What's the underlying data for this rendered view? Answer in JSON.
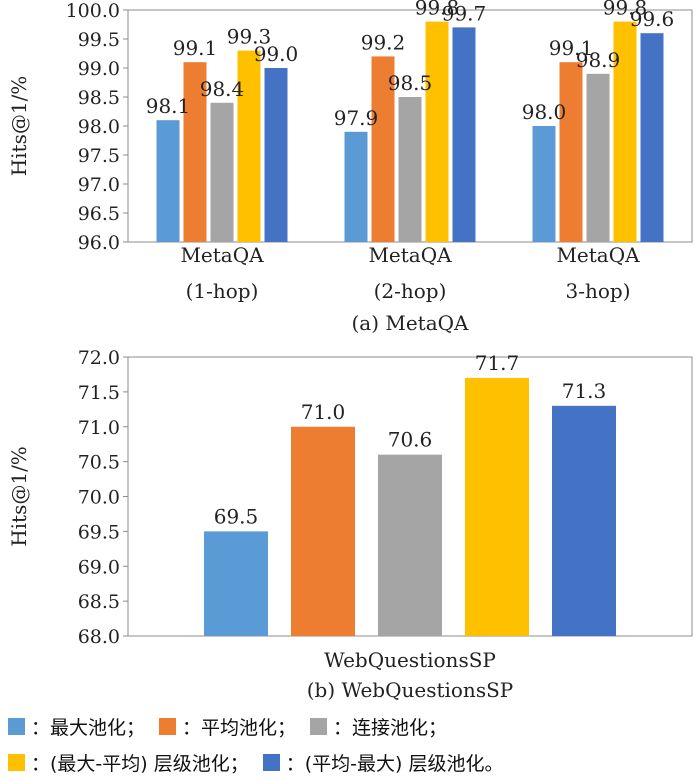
{
  "series_names": [
    "最大池化",
    "平均池化",
    "连接池化",
    "(最大-平均) 层级池化",
    "(平均-最大) 层级池化"
  ],
  "series_colors": [
    "#5b9bd5",
    "#ed7d31",
    "#a5a5a5",
    "#ffc000",
    "#4472c4"
  ],
  "legend": {
    "items": [
      {
        "label": "：最大池化；"
      },
      {
        "label": "：平均池化；"
      },
      {
        "label": "：连接池化；"
      },
      {
        "label": "：(最大-平均) 层级池化；"
      },
      {
        "label": "：(平均-最大) 层级池化。"
      }
    ]
  },
  "chart_data": [
    {
      "type": "bar",
      "title": "(a) MetaQA",
      "ylabel": "Hits@1/%",
      "ylim": [
        96.0,
        100.0
      ],
      "ytick_step": 0.5,
      "ytick_labels": [
        "96.0",
        "96.5",
        "97.0",
        "97.5",
        "98.0",
        "98.5",
        "99.0",
        "99.5",
        "100.0"
      ],
      "grid": false,
      "categories": [
        {
          "line1": "MetaQA",
          "line2": "(1-hop)"
        },
        {
          "line1": "MetaQA",
          "line2": "(2-hop)"
        },
        {
          "line1": "MetaQA",
          "line2": "3-hop)"
        }
      ],
      "series": [
        {
          "values": [
            98.1,
            97.9,
            98.0
          ],
          "labels": [
            "98.1",
            "97.9",
            "98.0"
          ]
        },
        {
          "values": [
            99.1,
            99.2,
            99.1
          ],
          "labels": [
            "99.1",
            "99.2",
            "99.1"
          ]
        },
        {
          "values": [
            98.4,
            98.5,
            98.9
          ],
          "labels": [
            "98.4",
            "98.5",
            "98.9"
          ]
        },
        {
          "values": [
            99.3,
            99.8,
            99.8
          ],
          "labels": [
            "99.3",
            "99.8",
            "99.8"
          ]
        },
        {
          "values": [
            99.0,
            99.7,
            99.6
          ],
          "labels": [
            "99.0",
            "99.7",
            "99.6"
          ]
        }
      ]
    },
    {
      "type": "bar",
      "title": "(b) WebQuestionsSP",
      "ylabel": "Hits@1/%",
      "ylim": [
        68.0,
        72.0
      ],
      "ytick_step": 0.5,
      "ytick_labels": [
        "68.0",
        "68.5",
        "69.0",
        "69.5",
        "70.0",
        "70.5",
        "71.0",
        "71.5",
        "72.0"
      ],
      "grid": false,
      "categories": [
        {
          "line1": "WebQuestionsSP",
          "line2": ""
        }
      ],
      "series": [
        {
          "values": [
            69.5
          ],
          "labels": [
            "69.5"
          ]
        },
        {
          "values": [
            71.0
          ],
          "labels": [
            "71.0"
          ]
        },
        {
          "values": [
            70.6
          ],
          "labels": [
            "70.6"
          ]
        },
        {
          "values": [
            71.7
          ],
          "labels": [
            "71.7"
          ]
        },
        {
          "values": [
            71.3
          ],
          "labels": [
            "71.3"
          ]
        }
      ]
    }
  ]
}
